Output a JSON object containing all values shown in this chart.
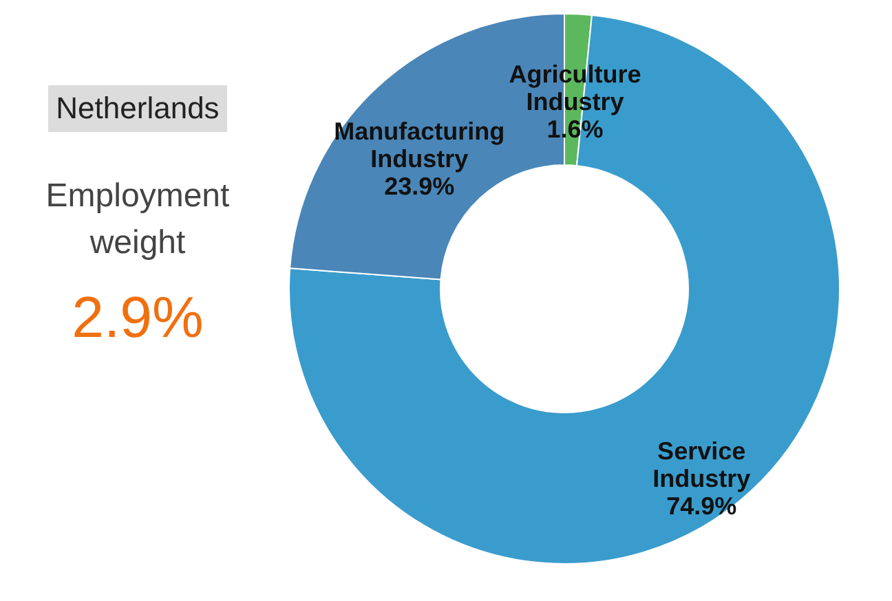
{
  "chart_data": {
    "type": "donut",
    "title": "Netherlands",
    "subtitle": "Employment weight",
    "annotations": [
      "2.9%"
    ],
    "categories": [
      "Agriculture Industry",
      "Service Industry",
      "Manufacturing Industry"
    ],
    "values": [
      1.6,
      74.9,
      23.9
    ],
    "value_labels": [
      "1.6%",
      "74.9%",
      "23.9%"
    ],
    "colors": [
      "#5cb85c",
      "#3a9ccc",
      "#4a86b8"
    ],
    "legend": false
  }
}
